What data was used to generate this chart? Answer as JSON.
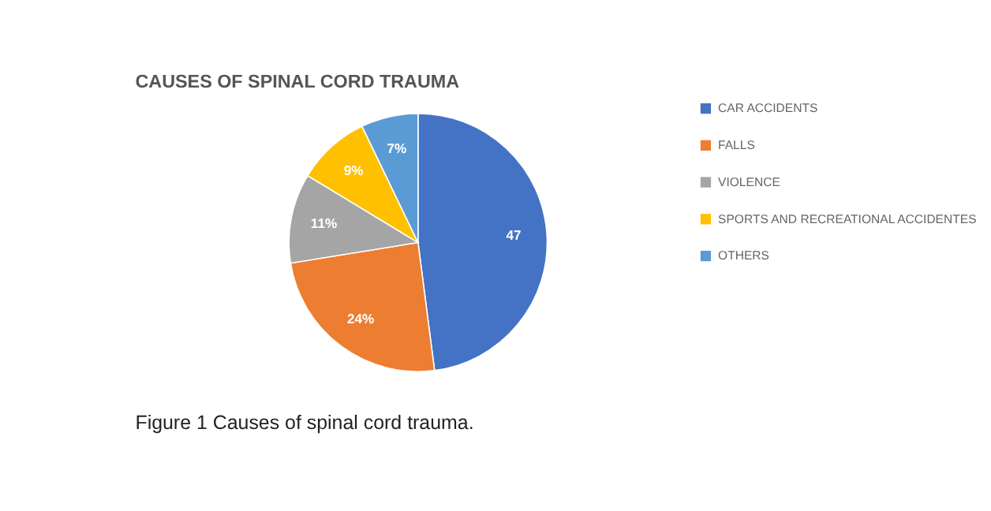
{
  "chart_data": {
    "type": "pie",
    "title": "CAUSES OF SPINAL CORD TRAUMA",
    "categories": [
      "CAR ACCIDENTS",
      "FALLS",
      "VIOLENCE",
      "SPORTS AND RECREATIONAL ACCIDENTES",
      "OTHERS"
    ],
    "values": [
      47,
      24,
      11,
      9,
      7
    ],
    "value_labels": [
      "47",
      "24%",
      "11%",
      "9%",
      "7%"
    ],
    "colors": [
      "#4472c4",
      "#ed7d31",
      "#a5a5a5",
      "#ffc000",
      "#5b9bd5"
    ],
    "legend": "right",
    "annotations": [
      "Figure 1   Causes of spinal cord trauma."
    ]
  }
}
